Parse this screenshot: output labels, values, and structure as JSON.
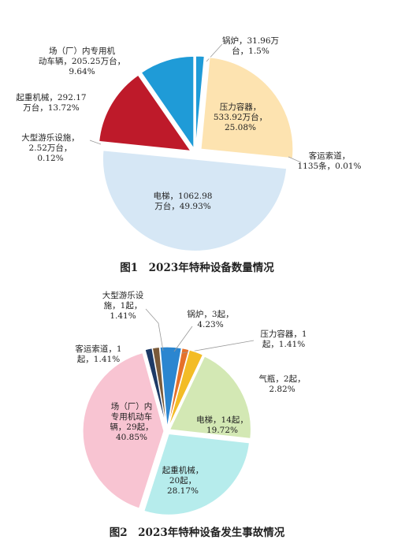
{
  "chart_data": [
    {
      "type": "pie",
      "title": "图1　2023年特种设备数量情况",
      "slices": [
        {
          "name": "锅炉",
          "value": 1.5,
          "color": "#1f9bd7",
          "text": [
            "锅炉，31.96万",
            "台，1.5%"
          ]
        },
        {
          "name": "压力容器",
          "value": 25.08,
          "color": "#fde3b0",
          "text": [
            "压力容器，",
            "533.92万台，",
            "25.08%"
          ]
        },
        {
          "name": "客运索道",
          "value": 0.01,
          "color": "#9a9a9a",
          "text": [
            "客运索道，",
            "1135条，0.01%"
          ]
        },
        {
          "name": "电梯",
          "value": 49.93,
          "color": "#d6e7f5",
          "text": [
            "电梯，1062.98",
            "万台，49.93%"
          ]
        },
        {
          "name": "大型游乐设施",
          "value": 0.12,
          "color": "#9a9a9a",
          "text": [
            "大型游乐设施，",
            "2.52万台，",
            "0.12%"
          ]
        },
        {
          "name": "起重机械",
          "value": 13.72,
          "color": "#be1a2a",
          "text": [
            "起重机械，292.17",
            "万台，13.72%"
          ]
        },
        {
          "name": "场（厂）内专用机动车辆",
          "value": 9.64,
          "color": "#1f9bd7",
          "text": [
            "场（厂）内专用机",
            "动车辆，205.25万台，",
            "9.64%"
          ]
        }
      ]
    },
    {
      "type": "pie",
      "title": "图2　2023年特种设备发生事故情况",
      "slices": [
        {
          "name": "锅炉",
          "value": 4.23,
          "color": "#2b86d0",
          "text": [
            "锅炉，3起，",
            "4.23%"
          ]
        },
        {
          "name": "压力容器",
          "value": 1.41,
          "color": "#e5712a",
          "text": [
            "压力容器，1",
            "起，1.41%"
          ]
        },
        {
          "name": "气瓶",
          "value": 2.82,
          "color": "#f3bc26",
          "text": [
            "气瓶，2起，",
            "2.82%"
          ]
        },
        {
          "name": "电梯",
          "value": 19.72,
          "color": "#d3e8b4",
          "text": [
            "电梯，14起，",
            "19.72%"
          ]
        },
        {
          "name": "起重机械",
          "value": 28.17,
          "color": "#b6ecec",
          "text": [
            "起重机械，",
            "20起，",
            "28.17%"
          ]
        },
        {
          "name": "场（厂）内专用机动车辆",
          "value": 40.85,
          "color": "#f8c4d2",
          "text": [
            "场（厂）内",
            "专用机动车",
            "辆，29起，",
            "40.85%"
          ]
        },
        {
          "name": "客运索道",
          "value": 1.41,
          "color": "#1d3a66",
          "text": [
            "客运索道，1",
            "起，1.41%"
          ]
        },
        {
          "name": "大型游乐设施",
          "value": 1.41,
          "color": "#7a5a3a",
          "text": [
            "大型游乐设",
            "施，1起，",
            "1.41%"
          ]
        }
      ]
    }
  ]
}
